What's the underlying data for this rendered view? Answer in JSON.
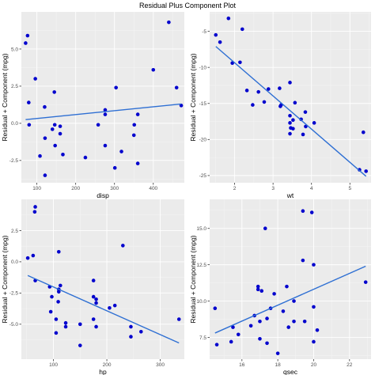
{
  "title": "Residual Plus Component Plot",
  "chart_data": [
    {
      "type": "scatter",
      "xlabel": "disp",
      "ylabel": "Residual + Component (mpg)",
      "xlim": [
        60,
        480
      ],
      "ylim": [
        -4,
        7.5
      ],
      "xticks": [
        {
          "v": 100,
          "label": "100"
        },
        {
          "v": 200,
          "label": "200"
        },
        {
          "v": 300,
          "label": "300"
        },
        {
          "v": 400,
          "label": "400"
        }
      ],
      "yticks": [
        {
          "v": -2.5,
          "label": "-2.5"
        },
        {
          "v": 0,
          "label": "0.0"
        },
        {
          "v": 2.5,
          "label": "2.5"
        },
        {
          "v": 5,
          "label": "5.0"
        }
      ],
      "points": [
        [
          71,
          5.4
        ],
        [
          76,
          5.9
        ],
        [
          79,
          1.4
        ],
        [
          80,
          -0.1
        ],
        [
          96,
          3.0
        ],
        [
          108,
          -2.2
        ],
        [
          120,
          1.1
        ],
        [
          121,
          -3.5
        ],
        [
          121,
          -1.0
        ],
        [
          140,
          -0.4
        ],
        [
          145,
          2.1
        ],
        [
          146,
          -0.1
        ],
        [
          147,
          -1.5
        ],
        [
          160,
          -0.2
        ],
        [
          160,
          -0.7
        ],
        [
          167,
          -2.1
        ],
        [
          225,
          -2.3
        ],
        [
          258,
          -0.1
        ],
        [
          276,
          0.6
        ],
        [
          276,
          -1.5
        ],
        [
          276,
          0.9
        ],
        [
          301,
          -3.0
        ],
        [
          304,
          2.4
        ],
        [
          318,
          -1.9
        ],
        [
          350,
          -0.8
        ],
        [
          351,
          -0.1
        ],
        [
          360,
          -2.7
        ],
        [
          360,
          0.6
        ],
        [
          400,
          3.6
        ],
        [
          440,
          6.8
        ],
        [
          460,
          2.4
        ],
        [
          472,
          1.2
        ]
      ],
      "fit": [
        [
          71,
          0.25
        ],
        [
          472,
          1.3
        ]
      ]
    },
    {
      "type": "scatter",
      "xlabel": "wt",
      "ylabel": "Residual + Component (mpg)",
      "xlim": [
        1.35,
        5.55
      ],
      "ylim": [
        -26,
        -2.3
      ],
      "xticks": [
        {
          "v": 2,
          "label": "2"
        },
        {
          "v": 3,
          "label": "3"
        },
        {
          "v": 4,
          "label": "4"
        },
        {
          "v": 5,
          "label": "5"
        }
      ],
      "yticks": [
        {
          "v": -25,
          "label": "-25"
        },
        {
          "v": -20,
          "label": "-20"
        },
        {
          "v": -15,
          "label": "-15"
        },
        {
          "v": -10,
          "label": "-10"
        },
        {
          "v": -5,
          "label": "-5"
        }
      ],
      "points": [
        [
          1.51,
          -5.5
        ],
        [
          1.62,
          -6.5
        ],
        [
          1.84,
          -3.2
        ],
        [
          1.94,
          -9.4
        ],
        [
          2.14,
          -9.3
        ],
        [
          2.2,
          -4.7
        ],
        [
          2.32,
          -13.2
        ],
        [
          2.47,
          -15.2
        ],
        [
          2.62,
          -13.4
        ],
        [
          2.77,
          -14.8
        ],
        [
          2.88,
          -13.0
        ],
        [
          3.17,
          -12.9
        ],
        [
          3.19,
          -15.4
        ],
        [
          3.21,
          -15.2
        ],
        [
          3.44,
          -16.7
        ],
        [
          3.44,
          -17.7
        ],
        [
          3.44,
          -19.2
        ],
        [
          3.44,
          -12.1
        ],
        [
          3.46,
          -18.4
        ],
        [
          3.52,
          -18.5
        ],
        [
          3.52,
          -17.3
        ],
        [
          3.57,
          -14.9
        ],
        [
          3.73,
          -17.2
        ],
        [
          3.78,
          -19.3
        ],
        [
          3.84,
          -16.2
        ],
        [
          3.85,
          -18.2
        ],
        [
          4.07,
          -17.7
        ],
        [
          5.25,
          -24.2
        ],
        [
          5.35,
          -19.0
        ],
        [
          5.42,
          -24.4
        ]
      ],
      "fit": [
        [
          1.51,
          -7.1
        ],
        [
          5.42,
          -25.1
        ]
      ]
    },
    {
      "type": "scatter",
      "xlabel": "hp",
      "ylabel": "Residual + Component (mpg)",
      "xlim": [
        40,
        345
      ],
      "ylim": [
        -7.8,
        5
      ],
      "xticks": [
        {
          "v": 100,
          "label": "100"
        },
        {
          "v": 200,
          "label": "200"
        },
        {
          "v": 300,
          "label": "300"
        }
      ],
      "yticks": [
        {
          "v": -5,
          "label": "-5.0"
        },
        {
          "v": -2.5,
          "label": "-2.5"
        },
        {
          "v": 0,
          "label": "0.0"
        },
        {
          "v": 2.5,
          "label": "2.5"
        }
      ],
      "points": [
        [
          52,
          0.3
        ],
        [
          62,
          0.5
        ],
        [
          65,
          4.0
        ],
        [
          66,
          4.4
        ],
        [
          66,
          -1.5
        ],
        [
          93,
          -2.0
        ],
        [
          95,
          -4.0
        ],
        [
          97,
          -2.8
        ],
        [
          105,
          -5.7
        ],
        [
          105,
          -4.6
        ],
        [
          109,
          -3.2
        ],
        [
          110,
          -2.4
        ],
        [
          110,
          0.8
        ],
        [
          110,
          -2.2
        ],
        [
          113,
          -1.9
        ],
        [
          123,
          -5.2
        ],
        [
          123,
          -4.9
        ],
        [
          150,
          -6.7
        ],
        [
          150,
          -5.0
        ],
        [
          175,
          -2.8
        ],
        [
          175,
          -1.5
        ],
        [
          175,
          -4.6
        ],
        [
          180,
          -3.0
        ],
        [
          180,
          -3.3
        ],
        [
          180,
          -5.2
        ],
        [
          205,
          -3.7
        ],
        [
          215,
          -3.5
        ],
        [
          230,
          1.3
        ],
        [
          245,
          -6.0
        ],
        [
          245,
          -5.2
        ],
        [
          264,
          -5.6
        ],
        [
          335,
          -4.6
        ]
      ],
      "fit": [
        [
          52,
          -1.1
        ],
        [
          335,
          -6.5
        ]
      ]
    },
    {
      "type": "scatter",
      "xlabel": "qsec",
      "ylabel": "Residual + Component (mpg)",
      "xlim": [
        14.2,
        23.2
      ],
      "ylim": [
        6,
        17
      ],
      "xticks": [
        {
          "v": 16,
          "label": "16"
        },
        {
          "v": 18,
          "label": "18"
        },
        {
          "v": 20,
          "label": "20"
        },
        {
          "v": 22,
          "label": "22"
        }
      ],
      "yticks": [
        {
          "v": 7.5,
          "label": "7.5"
        },
        {
          "v": 10,
          "label": "10.0"
        },
        {
          "v": 12.5,
          "label": "12.5"
        },
        {
          "v": 15,
          "label": "15.0"
        }
      ],
      "points": [
        [
          14.5,
          9.5
        ],
        [
          14.6,
          7.0
        ],
        [
          15.4,
          7.2
        ],
        [
          15.5,
          8.2
        ],
        [
          15.8,
          7.7
        ],
        [
          16.5,
          8.3
        ],
        [
          16.7,
          9.0
        ],
        [
          16.9,
          11.0
        ],
        [
          16.9,
          10.8
        ],
        [
          17.0,
          7.4
        ],
        [
          17.0,
          8.6
        ],
        [
          17.1,
          10.7
        ],
        [
          17.3,
          15.0
        ],
        [
          17.4,
          7.1
        ],
        [
          17.4,
          8.8
        ],
        [
          17.6,
          9.5
        ],
        [
          17.8,
          10.5
        ],
        [
          18.0,
          6.4
        ],
        [
          18.3,
          9.3
        ],
        [
          18.5,
          11.0
        ],
        [
          18.6,
          8.2
        ],
        [
          18.9,
          8.6
        ],
        [
          18.9,
          10.0
        ],
        [
          19.4,
          16.2
        ],
        [
          19.4,
          12.8
        ],
        [
          19.5,
          8.6
        ],
        [
          19.9,
          16.1
        ],
        [
          20.0,
          9.6
        ],
        [
          20.0,
          12.5
        ],
        [
          20.0,
          7.2
        ],
        [
          20.2,
          8.0
        ],
        [
          22.9,
          11.3
        ]
      ],
      "fit": [
        [
          14.5,
          7.8
        ],
        [
          22.9,
          12.4
        ]
      ]
    }
  ]
}
